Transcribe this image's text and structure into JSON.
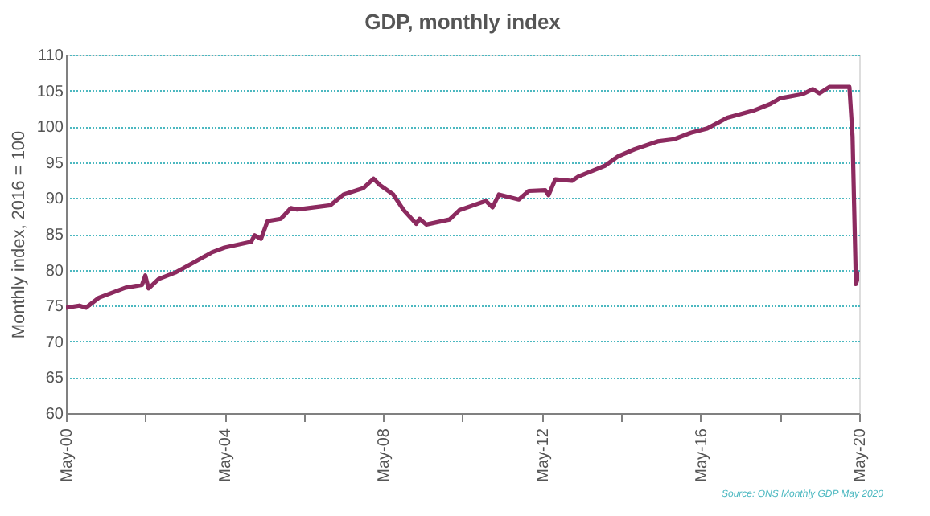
{
  "chart_data": {
    "type": "line",
    "title": "GDP, monthly index",
    "ylabel": "Monthly index, 2016 = 100",
    "annotations": [
      "Source: ONS Monthly GDP May 2020"
    ],
    "x": [
      "2000-05",
      "2000-09",
      "2000-11",
      "2001-03",
      "2001-11",
      "2002-04",
      "2002-05",
      "2002-06",
      "2002-09",
      "2003-02",
      "2003-08",
      "2004-01",
      "2004-05",
      "2005-01",
      "2005-02",
      "2005-04",
      "2005-06",
      "2005-10",
      "2006-01",
      "2006-03",
      "2007-01",
      "2007-05",
      "2007-11",
      "2008-02",
      "2008-04",
      "2008-08",
      "2008-11",
      "2009-03",
      "2009-04",
      "2009-06",
      "2010-01",
      "2010-04",
      "2010-12",
      "2011-02",
      "2011-04",
      "2011-10",
      "2012-01",
      "2012-06",
      "2012-07",
      "2012-09",
      "2013-02",
      "2013-04",
      "2013-12",
      "2014-04",
      "2014-09",
      "2015-04",
      "2015-09",
      "2016-02",
      "2016-07",
      "2017-01",
      "2017-09",
      "2018-02",
      "2018-05",
      "2018-12",
      "2019-03",
      "2019-05",
      "2019-08",
      "2020-02",
      "2020-03",
      "2020-04",
      "2020-05"
    ],
    "series": [
      {
        "color": "#8c2a5f",
        "values": [
          74.7,
          75.0,
          74.7,
          76.1,
          77.5,
          77.9,
          79.2,
          77.4,
          78.7,
          79.6,
          81.1,
          82.4,
          83.1,
          83.9,
          84.8,
          84.3,
          86.8,
          87.1,
          88.6,
          88.4,
          89.0,
          90.5,
          91.4,
          92.7,
          91.8,
          90.5,
          88.4,
          86.4,
          87.1,
          86.3,
          87.0,
          88.3,
          89.6,
          88.7,
          90.5,
          89.8,
          91.0,
          91.1,
          90.4,
          92.6,
          92.4,
          93.0,
          94.5,
          95.8,
          96.8,
          97.9,
          98.2,
          99.1,
          99.7,
          101.2,
          102.2,
          103.1,
          103.9,
          104.5,
          105.2,
          104.6,
          105.5,
          105.5,
          98.6,
          78.0,
          79.5
        ]
      }
    ],
    "xlim": [
      "2000-05",
      "2020-05"
    ],
    "xticks": [
      {
        "value": "2000-05",
        "label": "May-00"
      },
      {
        "value": "2002-05",
        "label": null
      },
      {
        "value": "2004-05",
        "label": "May-04"
      },
      {
        "value": "2006-05",
        "label": null
      },
      {
        "value": "2008-05",
        "label": "May-08"
      },
      {
        "value": "2010-05",
        "label": null
      },
      {
        "value": "2012-05",
        "label": "May-12"
      },
      {
        "value": "2014-05",
        "label": null
      },
      {
        "value": "2016-05",
        "label": "May-16"
      },
      {
        "value": "2018-05",
        "label": null
      },
      {
        "value": "2020-05",
        "label": "May-20"
      }
    ],
    "ylim": [
      60,
      110
    ],
    "yticks": [
      60,
      65,
      70,
      75,
      80,
      85,
      90,
      95,
      100,
      105,
      110
    ],
    "grid": "y",
    "line_style": "solid",
    "marker": "none"
  }
}
